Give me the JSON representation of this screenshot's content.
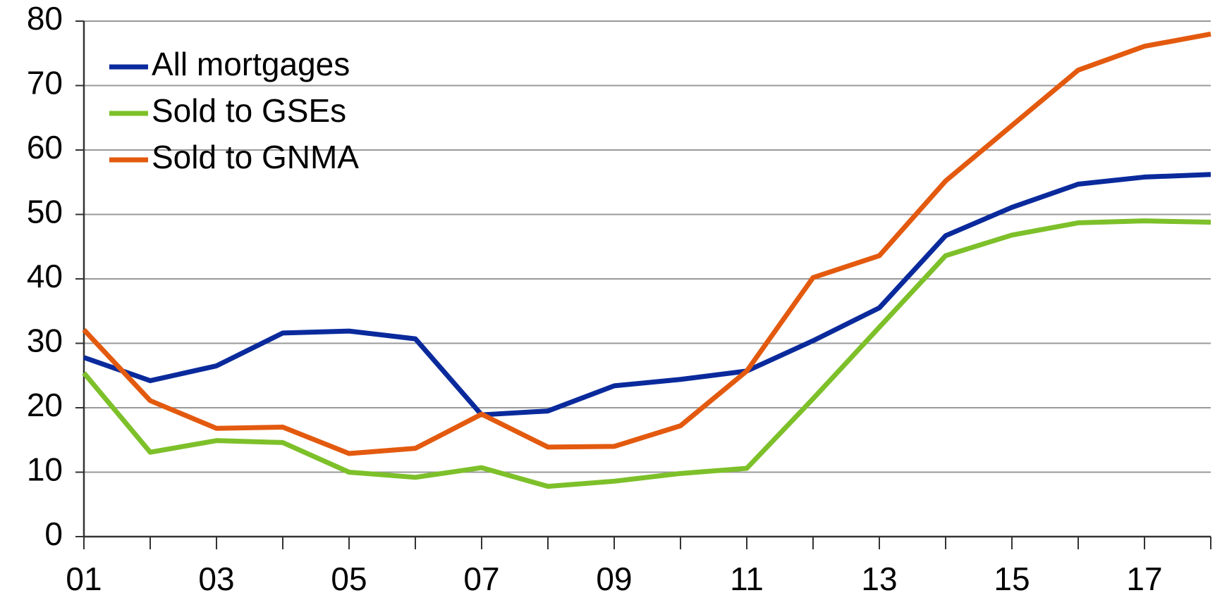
{
  "chart_data": {
    "type": "line",
    "categories": [
      "01",
      null,
      "03",
      null,
      "05",
      null,
      "07",
      null,
      "09",
      null,
      "11",
      null,
      "13",
      null,
      "15",
      null,
      "17",
      null
    ],
    "series": [
      {
        "name": "All mortgages",
        "color": "#0a2a9c",
        "values": [
          27.8,
          24.2,
          26.5,
          31.6,
          31.9,
          30.7,
          18.9,
          19.5,
          23.4,
          24.4,
          25.7,
          30.4,
          35.5,
          46.7,
          51.1,
          54.7,
          55.8,
          56.2
        ]
      },
      {
        "name": "Sold to GSEs",
        "color": "#7dc02a",
        "values": [
          25.4,
          13.1,
          14.9,
          14.6,
          10.0,
          9.2,
          10.7,
          7.8,
          8.6,
          9.8,
          10.6,
          21.4,
          32.5,
          43.6,
          46.8,
          48.7,
          49.0,
          48.8
        ]
      },
      {
        "name": "Sold to GNMA",
        "color": "#e35a0f",
        "values": [
          32.1,
          21.1,
          16.8,
          17.0,
          12.9,
          13.7,
          19.0,
          13.9,
          14.0,
          17.2,
          25.7,
          40.2,
          43.6,
          55.2,
          63.8,
          72.4,
          76.1,
          78.0
        ]
      }
    ],
    "ylim": [
      0,
      80
    ],
    "yticks": [
      0,
      10,
      20,
      30,
      40,
      50,
      60,
      70,
      80
    ],
    "grid": true,
    "legend": "upper left"
  }
}
